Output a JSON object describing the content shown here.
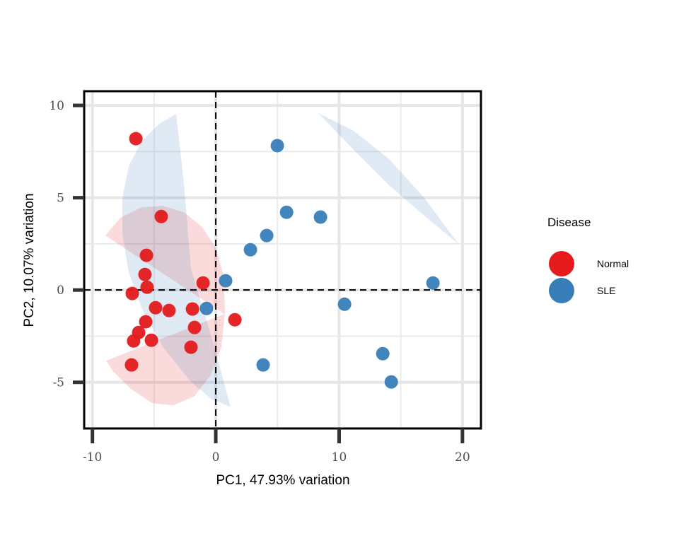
{
  "chart_data": {
    "type": "scatter",
    "xlabel": "PC1, 47.93% variation",
    "ylabel": "PC2, 10.07% variation",
    "xlim": [
      -10.67,
      21.5
    ],
    "ylim": [
      -7.5,
      10.77
    ],
    "xticks": [
      -10,
      0,
      10,
      20
    ],
    "yticks": [
      -5,
      0,
      5,
      10
    ],
    "xtick_labels": [
      "-10",
      "0",
      "10",
      "20"
    ],
    "ytick_labels": [
      "-5",
      "0",
      "5",
      "10"
    ],
    "grid": true,
    "reference_lines": {
      "x": 0,
      "y": 0,
      "style": "dashed"
    },
    "legend": {
      "title": "Disease",
      "placement": "right"
    },
    "series": [
      {
        "name": "Normal",
        "color": "#E41A1C",
        "points": [
          [
            -6.48,
            8.2
          ],
          [
            -4.42,
            3.98
          ],
          [
            -5.62,
            1.88
          ],
          [
            -5.74,
            0.84
          ],
          [
            -5.57,
            0.15
          ],
          [
            -6.77,
            -0.19
          ],
          [
            -1.03,
            0.38
          ],
          [
            -4.88,
            -0.96
          ],
          [
            -3.79,
            -1.11
          ],
          [
            -1.89,
            -1.03
          ],
          [
            -1.72,
            -2.03
          ],
          [
            -5.68,
            -1.72
          ],
          [
            -6.25,
            -2.3
          ],
          [
            -6.66,
            -2.76
          ],
          [
            -5.22,
            -2.72
          ],
          [
            -2.01,
            -3.1
          ],
          [
            -6.83,
            -4.06
          ],
          [
            1.55,
            -1.61
          ]
        ],
        "ellipses": [
          [
            [
              -8.95,
              2.95
            ],
            [
              -7.75,
              3.91
            ],
            [
              -6.02,
              4.48
            ],
            [
              -4.3,
              4.56
            ],
            [
              -2.58,
              4.21
            ],
            [
              -1.15,
              3.45
            ],
            [
              0.0,
              2.3
            ],
            [
              0.63,
              0.77
            ],
            [
              0.75,
              -1.15
            ],
            [
              0.46,
              -3.07
            ],
            [
              -0.4,
              -4.6
            ],
            [
              -1.72,
              -5.75
            ],
            [
              -3.44,
              -6.25
            ],
            [
              -5.16,
              -6.13
            ],
            [
              -6.88,
              -5.36
            ],
            [
              -8.32,
              -4.41
            ],
            [
              -8.89,
              -3.83
            ],
            [
              0.69,
              -1.3
            ]
          ]
        ]
      },
      {
        "name": "SLE",
        "color": "#377EB8",
        "points": [
          [
            4.99,
            7.82
          ],
          [
            5.74,
            4.21
          ],
          [
            8.49,
            3.95
          ],
          [
            4.13,
            2.95
          ],
          [
            2.81,
            2.18
          ],
          [
            0.8,
            0.5
          ],
          [
            -0.75,
            -1.0
          ],
          [
            17.61,
            0.38
          ],
          [
            10.44,
            -0.77
          ],
          [
            3.84,
            -4.06
          ],
          [
            13.54,
            -3.45
          ],
          [
            14.23,
            -4.98
          ]
        ],
        "ellipses": [
          [
            [
              -3.21,
              9.54
            ],
            [
              -4.59,
              9.0
            ],
            [
              -6.02,
              8.05
            ],
            [
              -7.06,
              6.7
            ],
            [
              -7.57,
              4.98
            ],
            [
              -7.57,
              3.07
            ],
            [
              -7.06,
              0.96
            ],
            [
              -6.02,
              -0.96
            ],
            [
              -4.3,
              -3.07
            ],
            [
              -2.01,
              -4.98
            ],
            [
              -0.29,
              -5.94
            ],
            [
              1.2,
              -6.32
            ],
            [
              -0.29,
              -2.68
            ],
            [
              -2.01,
              1.15
            ],
            [
              -2.58,
              5.75
            ]
          ],
          [
            [
              8.32,
              9.58
            ],
            [
              11.19,
              8.62
            ],
            [
              14.06,
              7.09
            ],
            [
              16.92,
              4.98
            ],
            [
              19.68,
              2.49
            ],
            [
              16.92,
              4.02
            ],
            [
              14.06,
              5.67
            ],
            [
              11.19,
              7.59
            ]
          ]
        ]
      }
    ]
  }
}
